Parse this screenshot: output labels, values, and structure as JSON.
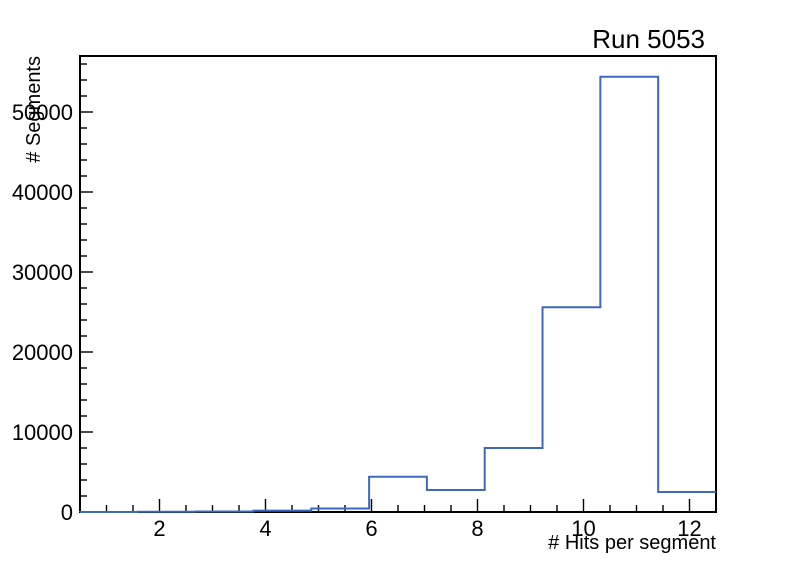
{
  "chart_data": {
    "type": "bar",
    "style": "step-histogram-outline",
    "title": "Run 5053",
    "xlabel": "# Hits per segment",
    "ylabel": "# Segments",
    "xlim": [
      0.5,
      12.5
    ],
    "ylim": [
      0,
      57000
    ],
    "bin_edges": [
      0.5,
      1.591,
      2.682,
      3.773,
      4.864,
      5.955,
      7.045,
      8.136,
      9.227,
      10.318,
      11.409,
      12.5
    ],
    "counts": [
      5,
      25,
      55,
      170,
      430,
      4400,
      2750,
      8000,
      25600,
      54400,
      2500
    ],
    "x_ticks": {
      "major_values": [
        2,
        4,
        6,
        8,
        10,
        12
      ],
      "major_labels": [
        "2",
        "4",
        "6",
        "8",
        "10",
        "12"
      ],
      "minor_step": 0.5
    },
    "y_ticks": {
      "major_values": [
        0,
        10000,
        20000,
        30000,
        40000,
        50000
      ],
      "major_labels": [
        "0",
        "10000",
        "20000",
        "30000",
        "40000",
        "50000"
      ],
      "minor_step": 2000
    },
    "grid": false,
    "legend": "none",
    "line_color": "#3c69be",
    "axis_color": "#000000",
    "background_color": "#ffffff"
  }
}
